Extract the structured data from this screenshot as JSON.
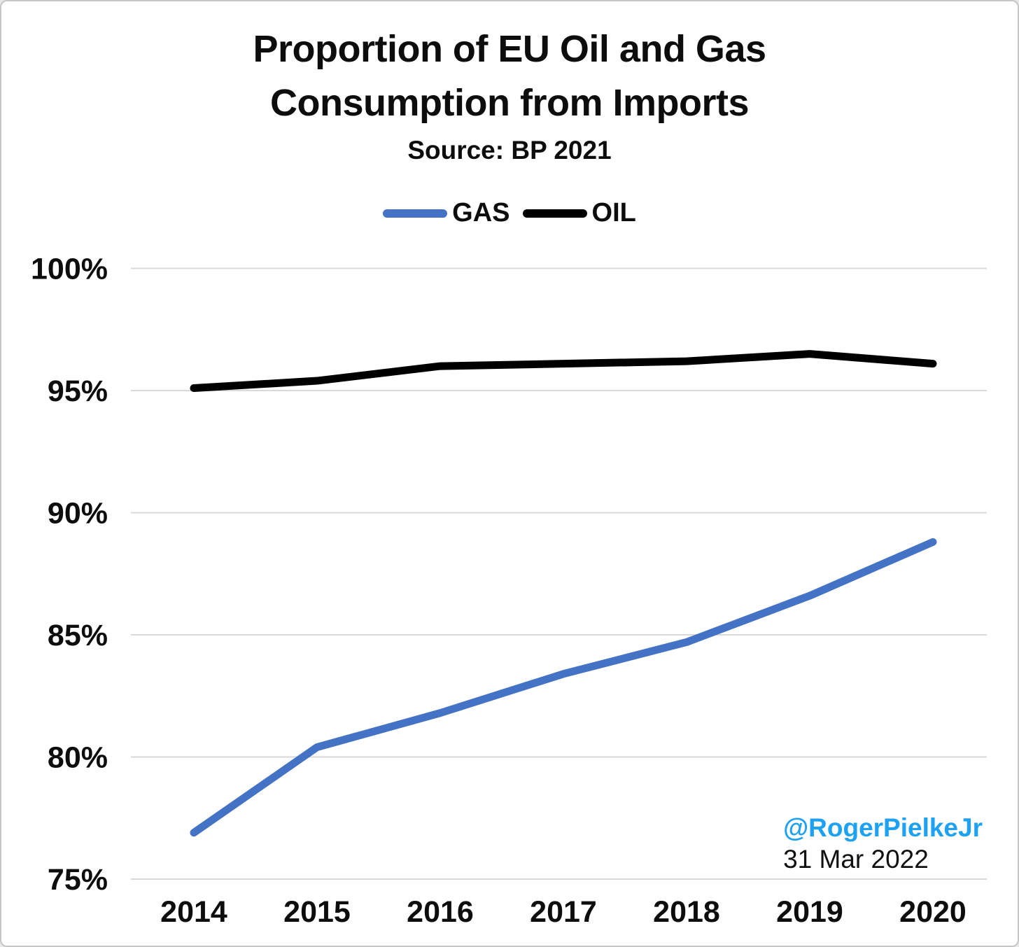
{
  "header": {
    "title": "Proportion of EU Oil and Gas Consumption from Imports",
    "subtitle": "Source: BP 2021"
  },
  "legend": [
    {
      "label": "GAS",
      "color": "#4472C4"
    },
    {
      "label": "OIL",
      "color": "#000000"
    }
  ],
  "watermark": {
    "handle": "@RogerPielkeJr",
    "date": "31 Mar 2022",
    "handle_color": "#1DA1F2"
  },
  "colors": {
    "gridline": "#d9d9d9",
    "text": "#0d0d0d",
    "gas_line": "#4472C4",
    "oil_line": "#000000"
  },
  "chart_data": {
    "type": "line",
    "title": "Proportion of EU Oil and Gas Consumption from Imports",
    "subtitle": "Source: BP 2021",
    "x": [
      2014,
      2015,
      2016,
      2017,
      2018,
      2019,
      2020
    ],
    "series": [
      {
        "name": "GAS",
        "color": "#4472C4",
        "values": [
          76.9,
          80.4,
          81.8,
          83.4,
          84.7,
          86.6,
          88.8
        ]
      },
      {
        "name": "OIL",
        "color": "#000000",
        "values": [
          95.1,
          95.4,
          96.0,
          96.1,
          96.2,
          96.5,
          96.1
        ]
      }
    ],
    "yticks": [
      75,
      80,
      85,
      90,
      95,
      100
    ],
    "ytick_suffix": "%",
    "ylim": [
      75,
      100
    ],
    "xlabel": "",
    "ylabel": "",
    "grid": true,
    "legend_position": "top"
  }
}
